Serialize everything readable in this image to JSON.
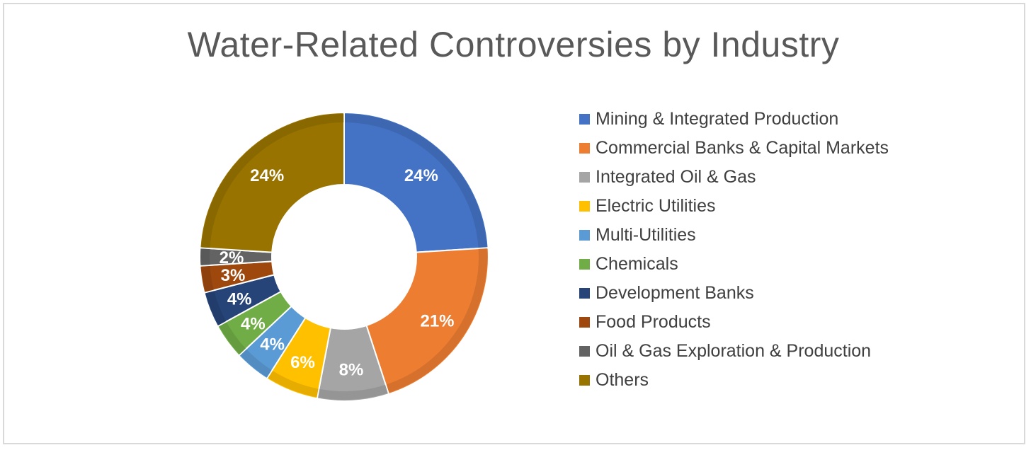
{
  "chart_data": {
    "type": "pie",
    "subtype": "donut",
    "title": "Water-Related Controversies by Industry",
    "legend_position": "right",
    "slices": [
      {
        "label": "Mining & Integrated Production",
        "value": 24,
        "display": "24%",
        "color": "#4472c4"
      },
      {
        "label": "Commercial Banks & Capital Markets",
        "value": 21,
        "display": "21%",
        "color": "#ed7d31"
      },
      {
        "label": "Integrated Oil & Gas",
        "value": 8,
        "display": "8%",
        "color": "#a5a5a5"
      },
      {
        "label": "Electric Utilities",
        "value": 6,
        "display": "6%",
        "color": "#ffc000"
      },
      {
        "label": "Multi-Utilities",
        "value": 4,
        "display": "4%",
        "color": "#5b9bd5"
      },
      {
        "label": "Chemicals",
        "value": 4,
        "display": "4%",
        "color": "#70ad47"
      },
      {
        "label": "Development Banks",
        "value": 4,
        "display": "4%",
        "color": "#264478"
      },
      {
        "label": "Food Products",
        "value": 3,
        "display": "3%",
        "color": "#9e480e"
      },
      {
        "label": "Oil & Gas Exploration & Production",
        "value": 2,
        "display": "2%",
        "color": "#636363"
      },
      {
        "label": "Others",
        "value": 24,
        "display": "24%",
        "color": "#997300"
      }
    ]
  }
}
